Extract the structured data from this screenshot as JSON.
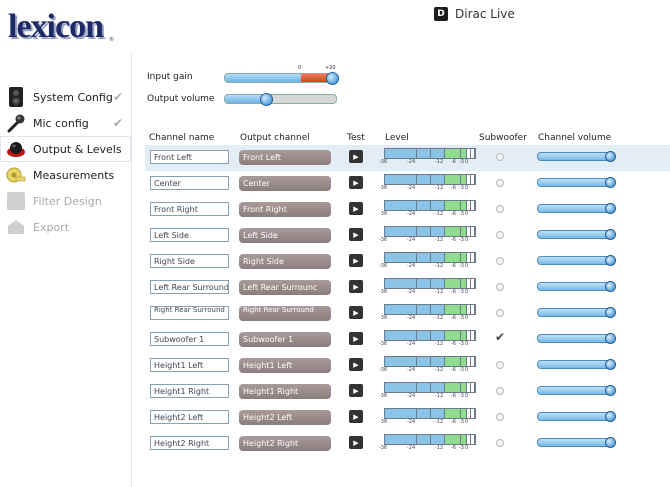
{
  "brand": {
    "logo": "lexicon",
    "trademark": "®",
    "product": "Dirac Live",
    "product_icon": "dirac-d-icon"
  },
  "sidebar": {
    "items": [
      {
        "label": "System Config",
        "icon": "speaker-icon",
        "done": true,
        "state": "normal"
      },
      {
        "label": "Mic config",
        "icon": "microphone-icon",
        "done": true,
        "state": "normal"
      },
      {
        "label": "Output & Levels",
        "icon": "levels-icon",
        "done": false,
        "state": "active"
      },
      {
        "label": "Measurements",
        "icon": "tape-measure-icon",
        "done": false,
        "state": "normal"
      },
      {
        "label": "Filter Design",
        "icon": "filter-icon",
        "done": false,
        "state": "disabled"
      },
      {
        "label": "Export",
        "icon": "export-icon",
        "done": false,
        "state": "disabled"
      }
    ]
  },
  "controls": {
    "input_gain_label": "Input gain",
    "input_gain_min": "0",
    "input_gain_max": "+20",
    "output_volume_label": "Output volume"
  },
  "table": {
    "headers": {
      "channel_name": "Channel name",
      "output_channel": "Output channel",
      "test": "Test",
      "level": "Level",
      "subwoofer": "Subwoofer",
      "channel_volume": "Channel volume"
    },
    "level_scale": [
      "-36",
      "-24",
      "-12",
      "-6",
      "-3",
      "0"
    ],
    "rows": [
      {
        "name": "Front Left",
        "output": "Front Left",
        "subwoofer": false
      },
      {
        "name": "Center",
        "output": "Center",
        "subwoofer": false
      },
      {
        "name": "Front Right",
        "output": "Front Right",
        "subwoofer": false
      },
      {
        "name": "Left Side",
        "output": "Left Side",
        "subwoofer": false
      },
      {
        "name": "Right Side",
        "output": "Right Side",
        "subwoofer": false
      },
      {
        "name": "Left Rear Surround",
        "output": "Left Rear Surrounc",
        "subwoofer": false
      },
      {
        "name": "Right Rear Surround",
        "output": "Right Rear Surround",
        "subwoofer": false
      },
      {
        "name": "Subwoofer 1",
        "output": "Subwoofer 1",
        "subwoofer": true
      },
      {
        "name": "Height1 Left",
        "output": "Height1 Left",
        "subwoofer": false
      },
      {
        "name": "Height1 Right",
        "output": "Height1 Right",
        "subwoofer": false
      },
      {
        "name": "Height2 Left",
        "output": "Height2 Left",
        "subwoofer": false
      },
      {
        "name": "Height2 Right",
        "output": "Height2 Right",
        "subwoofer": false
      }
    ]
  },
  "colors": {
    "brand": "#1d2a66",
    "selected_row": "#e2edf5",
    "accent_blue": "#2a82c8",
    "gain_red": "#d84315",
    "meter_green": "#8fdc8f",
    "meter_blue": "#8cc4e8"
  }
}
